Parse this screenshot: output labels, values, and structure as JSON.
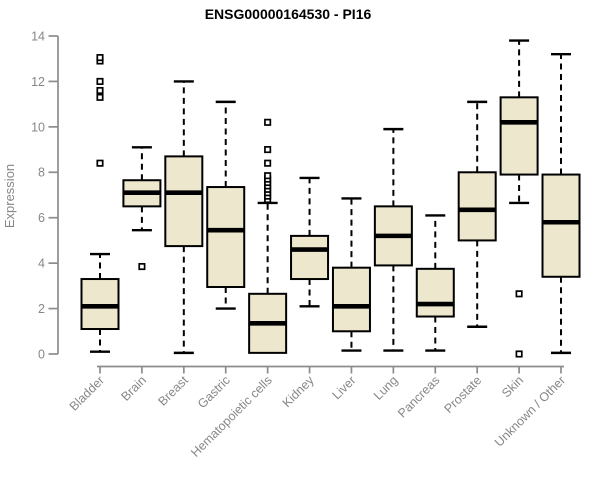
{
  "colors": {
    "background": "#FFFFFF",
    "box_fill": "#EDE7CD",
    "box_stroke": "#000000",
    "median": "#000000",
    "whisker": "#000000",
    "outlier_stroke": "#000000",
    "outlier_fill": "#FFFFFF",
    "axis": "#8C8C8C",
    "tick_labels": "#878787",
    "title": "#000000"
  },
  "chart_data": {
    "type": "boxplot",
    "title": "ENSG00000164530 - PI16",
    "ylabel": "Expression",
    "xlabel": "",
    "ylim": [
      0,
      14
    ],
    "yticks": [
      0,
      2,
      4,
      6,
      8,
      10,
      12,
      14
    ],
    "grid": false,
    "legend": "none",
    "categories": [
      "Bladder",
      "Brain",
      "Breast",
      "Gastric",
      "Hematopoietic cells",
      "Kidney",
      "Liver",
      "Lung",
      "Pancreas",
      "Prostate",
      "Skin",
      "Unknown / Other"
    ],
    "series": [
      {
        "name": "Bladder",
        "whisker_low": 0.1,
        "q1": 1.1,
        "median": 2.1,
        "q3": 3.3,
        "whisker_high": 4.4,
        "outliers": [
          8.4,
          11.3,
          11.6,
          12.0,
          12.9,
          13.05
        ]
      },
      {
        "name": "Brain",
        "whisker_low": 5.45,
        "q1": 6.5,
        "median": 7.1,
        "q3": 7.65,
        "whisker_high": 9.1,
        "outliers": [
          3.85
        ]
      },
      {
        "name": "Breast",
        "whisker_low": 0.05,
        "q1": 4.75,
        "median": 7.1,
        "q3": 8.7,
        "whisker_high": 12.0,
        "outliers": []
      },
      {
        "name": "Gastric",
        "whisker_low": 2.0,
        "q1": 2.95,
        "median": 5.45,
        "q3": 7.35,
        "whisker_high": 11.1,
        "outliers": []
      },
      {
        "name": "Hematopoietic cells",
        "whisker_low": null,
        "q1": 0.05,
        "median": 1.35,
        "q3": 2.65,
        "whisker_high": 6.65,
        "outliers": [
          6.8,
          6.95,
          7.1,
          7.25,
          7.4,
          7.55,
          7.7,
          7.85,
          8.4,
          9.0,
          10.2
        ]
      },
      {
        "name": "Kidney",
        "whisker_low": 2.1,
        "q1": 3.3,
        "median": 4.6,
        "q3": 5.2,
        "whisker_high": 7.75,
        "outliers": []
      },
      {
        "name": "Liver",
        "whisker_low": 0.15,
        "q1": 1.0,
        "median": 2.1,
        "q3": 3.8,
        "whisker_high": 6.85,
        "outliers": []
      },
      {
        "name": "Lung",
        "whisker_low": 0.15,
        "q1": 3.9,
        "median": 5.2,
        "q3": 6.5,
        "whisker_high": 9.9,
        "outliers": []
      },
      {
        "name": "Pancreas",
        "whisker_low": 0.15,
        "q1": 1.65,
        "median": 2.2,
        "q3": 3.75,
        "whisker_high": 6.1,
        "outliers": []
      },
      {
        "name": "Prostate",
        "whisker_low": 1.2,
        "q1": 5.0,
        "median": 6.35,
        "q3": 8.0,
        "whisker_high": 11.1,
        "outliers": []
      },
      {
        "name": "Skin",
        "whisker_low": 6.65,
        "q1": 7.9,
        "median": 10.2,
        "q3": 11.3,
        "whisker_high": 13.8,
        "outliers": [
          2.65,
          0.0
        ]
      },
      {
        "name": "Unknown / Other",
        "whisker_low": 0.05,
        "q1": 3.4,
        "median": 5.8,
        "q3": 7.9,
        "whisker_high": 13.2,
        "outliers": []
      }
    ]
  }
}
